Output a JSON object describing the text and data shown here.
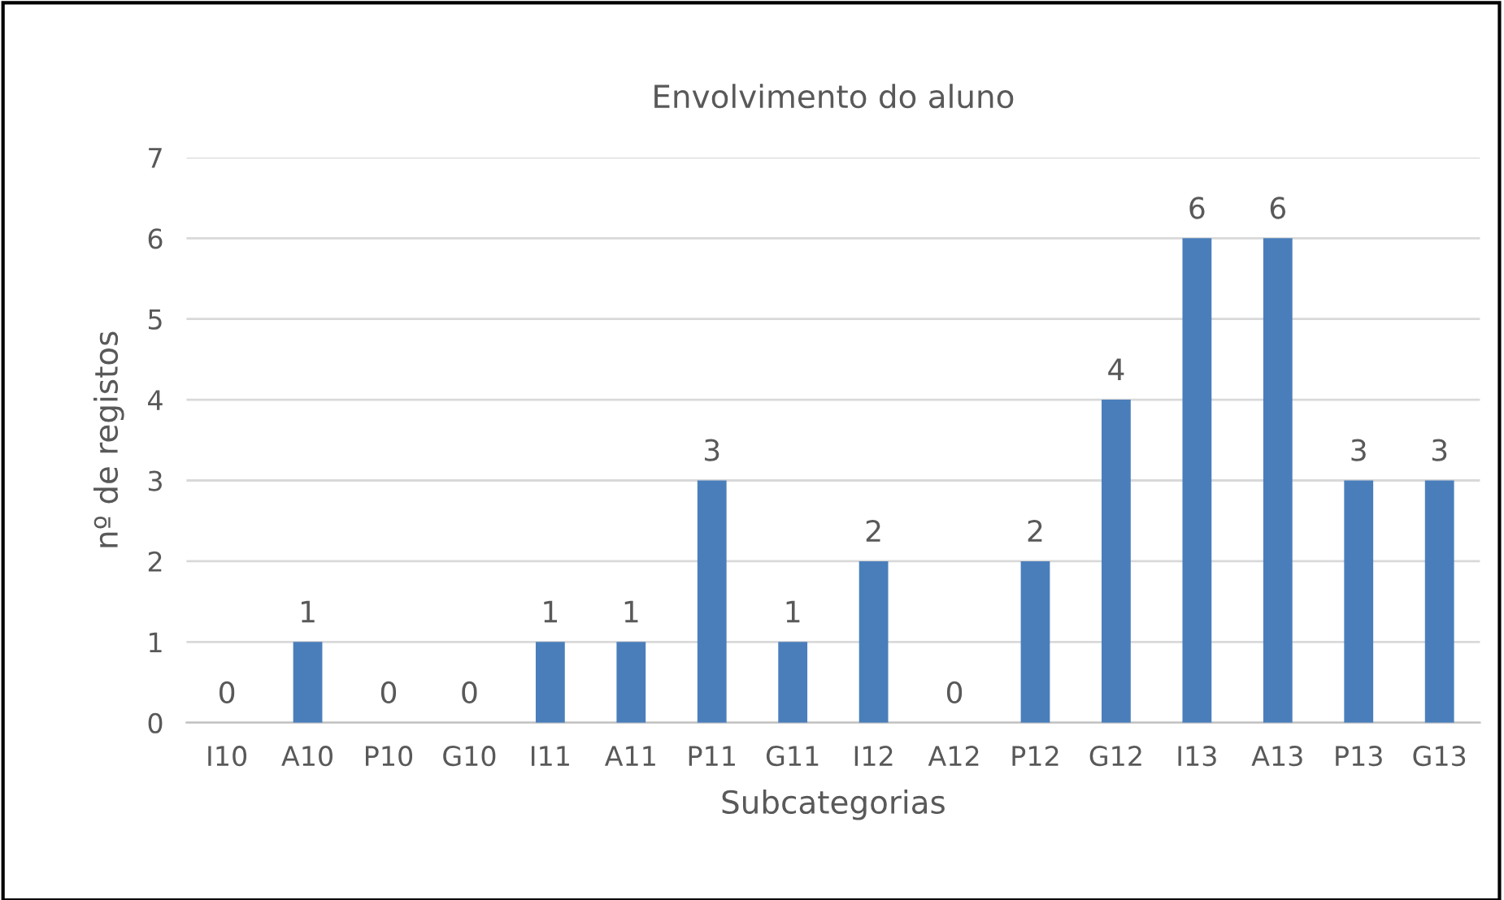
{
  "chart_data": {
    "type": "bar",
    "title": "Envolvimento do aluno",
    "xlabel": "Subcategorias",
    "ylabel": "nº de registos",
    "categories": [
      "I10",
      "A10",
      "P10",
      "G10",
      "I11",
      "A11",
      "P11",
      "G11",
      "I12",
      "A12",
      "P12",
      "G12",
      "I13",
      "A13",
      "P13",
      "G13"
    ],
    "values": [
      0,
      1,
      0,
      0,
      1,
      1,
      3,
      1,
      2,
      0,
      2,
      4,
      6,
      6,
      3,
      3
    ],
    "color": "#4a7ebb",
    "ylim": [
      0,
      7
    ],
    "yticks": [
      0,
      1,
      2,
      3,
      4,
      5,
      6,
      7
    ],
    "grid": "y",
    "data_labels": true
  }
}
